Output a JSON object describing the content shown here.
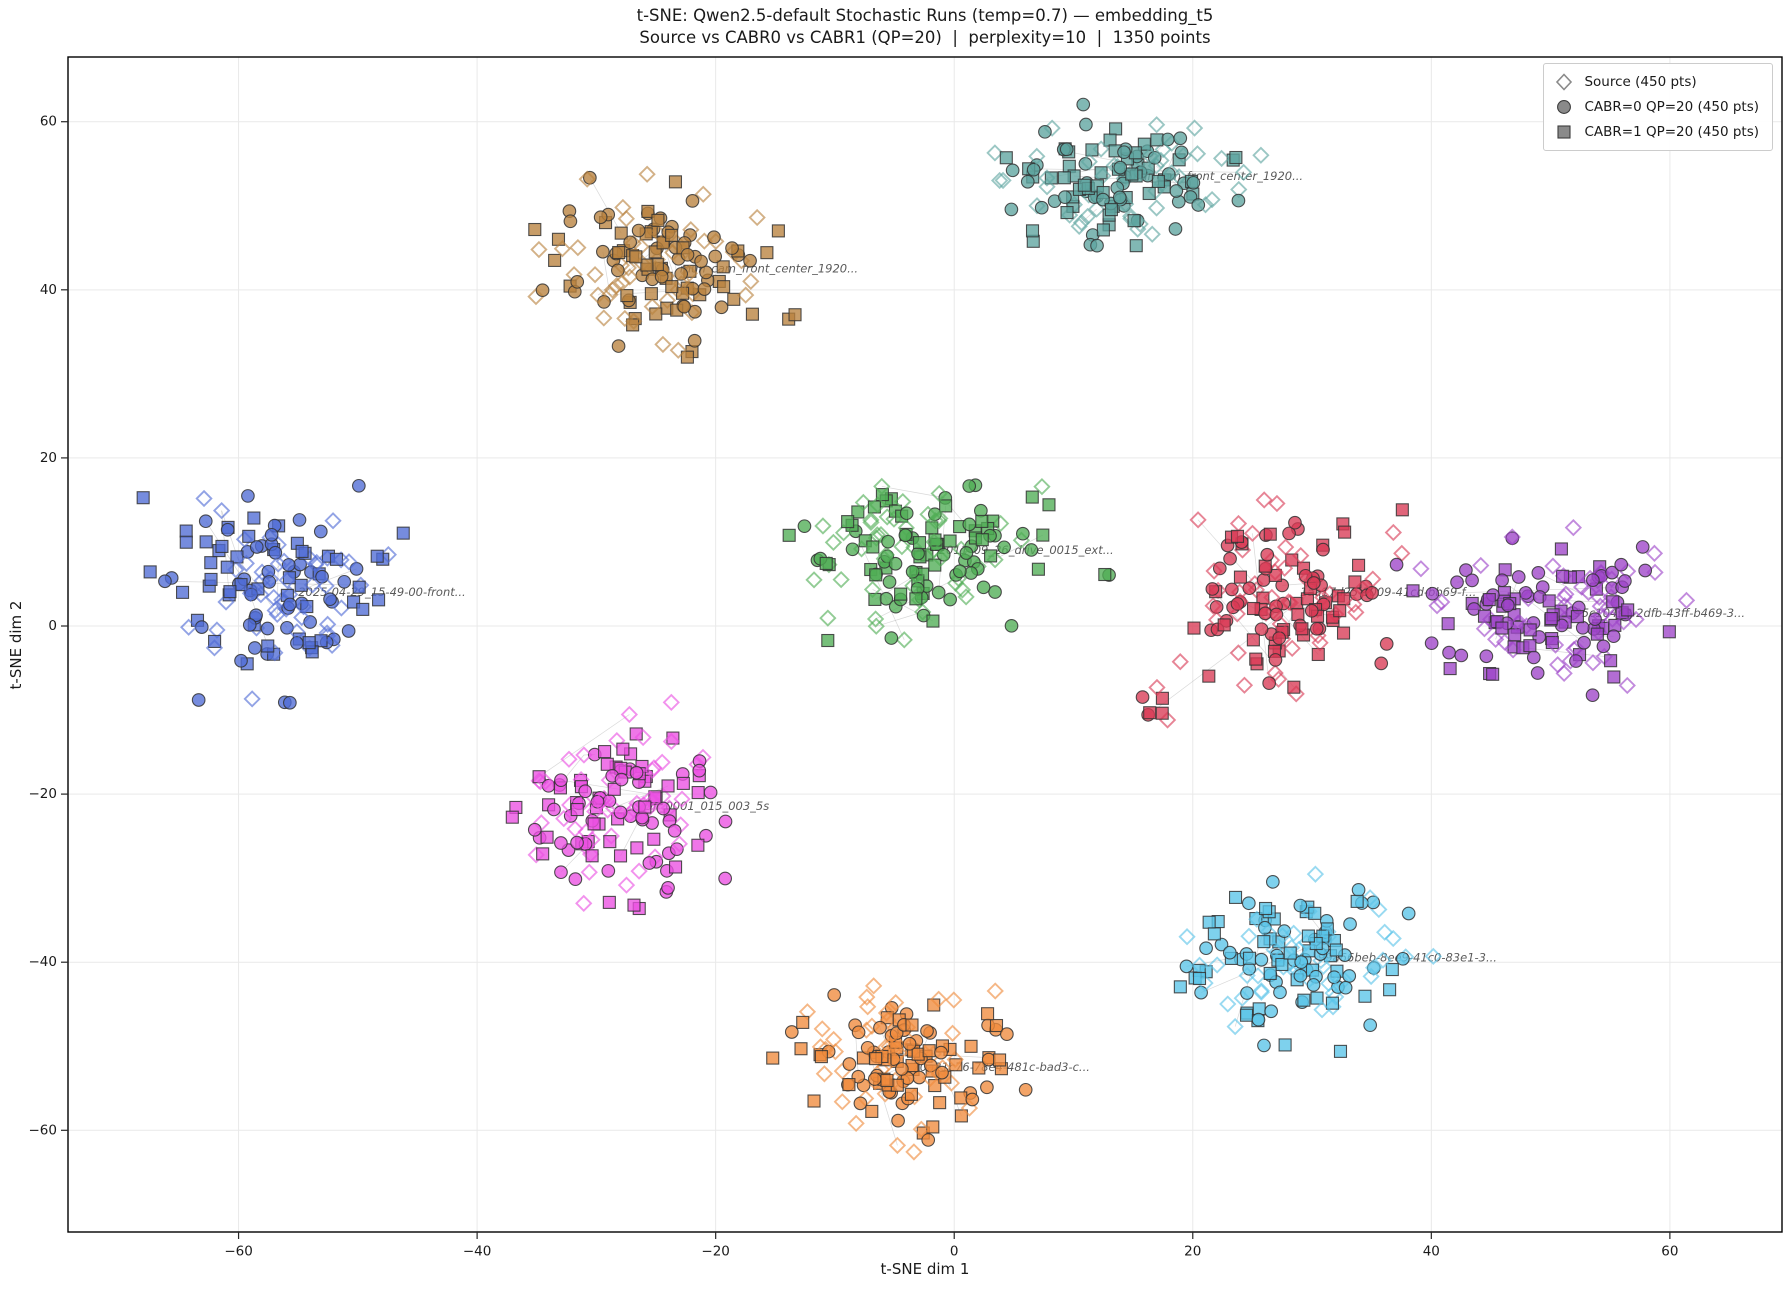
{
  "figure": {
    "title": "t-SNE: Qwen2.5-default Stochastic Runs (temp=0.7) — embedding_t5",
    "subtitle": "Source vs CABR0 vs CABR1 (QP=20)  |  perplexity=10  |  1350 points"
  },
  "chart_data": {
    "type": "scatter",
    "title": "t-SNE: Qwen2.5-default Stochastic Runs (temp=0.7) — embedding_t5",
    "subtitle": "Source vs CABR0 vs CABR1 (QP=20)  |  perplexity=10  |  1350 points",
    "xlabel": "t-SNE dim 1",
    "ylabel": "t-SNE dim 2",
    "xlim": [
      -74.3,
      69.4
    ],
    "ylim": [
      -72.1,
      67.7
    ],
    "xticks": [
      -60,
      -40,
      -20,
      0,
      20,
      40,
      60
    ],
    "yticks": [
      -60,
      -40,
      -20,
      0,
      20,
      40,
      60
    ],
    "grid": true,
    "total_points": 1350,
    "points_per_series": 450,
    "series_per_cluster": 50,
    "legend": {
      "position": "upper right",
      "entries": [
        {
          "label": "Source (450 pts)",
          "marker": "diamond",
          "filled": false
        },
        {
          "label": "CABR=0 QP=20 (450 pts)",
          "marker": "circle",
          "filled": true
        },
        {
          "label": "CABR=1 QP=20 (450 pts)",
          "marker": "square",
          "filled": true
        }
      ]
    },
    "clusters": [
      {
        "label": "2025-04-29_15-49-00-front...",
        "color": "#4f6bd5",
        "center": [
          -56.5,
          4.0
        ],
        "sigma": [
          4.8,
          5.2
        ]
      },
      {
        "label": "mun_cam_front_center_1920...",
        "color": "#b8813d",
        "center": [
          -24.5,
          42.5
        ],
        "sigma": [
          4.3,
          4.6
        ]
      },
      {
        "label": "gal_cam_front_center_1920...",
        "color": "#5da49f",
        "center": [
          13.5,
          53.5
        ],
        "sigma": [
          5.0,
          3.6
        ]
      },
      {
        "label": "2011_09_26_drive_0015_ext...",
        "color": "#4fad54",
        "center": [
          -2.8,
          9.0
        ],
        "sigma": [
          4.3,
          4.2
        ],
        "outliers": {
          "center": [
            14.5,
            6.2
          ],
          "sigma": [
            0.9,
            0.6
          ],
          "n": 2
        }
      },
      {
        "label": "1aa17d25-3009-41cd-bb69-f...",
        "color": "#d83a55",
        "center": [
          27.5,
          4.0
        ],
        "sigma": [
          4.6,
          5.0
        ],
        "outliers": {
          "center": [
            16.0,
            -9.5
          ],
          "sigma": [
            1.6,
            1.2
          ],
          "n": 7
        }
      },
      {
        "label": "95c10498-2dfb-43ff-b469-3...",
        "color": "#9d44c8",
        "center": [
          50.5,
          1.5
        ],
        "sigma": [
          5.2,
          4.0
        ]
      },
      {
        "label": "DJI_0001_015_003_5s",
        "color": "#ea4fe2",
        "center": [
          -27.5,
          -21.5
        ],
        "sigma": [
          3.8,
          5.0
        ]
      },
      {
        "label": "70a21c76-78e4-481c-bad3-c...",
        "color": "#ef8a3c",
        "center": [
          -5.0,
          -52.5
        ],
        "sigma": [
          4.4,
          4.4
        ]
      },
      {
        "label": "99a66beb-8ee9-41c0-83e1-3...",
        "color": "#5ac4e8",
        "center": [
          29.0,
          -39.5
        ],
        "sigma": [
          4.4,
          4.4
        ]
      }
    ],
    "label_style": {
      "dx": 1.5,
      "color": "#3d3d3d"
    },
    "style": {
      "grid_color": "#e9e9e9",
      "spine_color": "#000000",
      "tick_color": "#262626",
      "marker_edge_color": "#333333",
      "legend_marker_color": "#8a8a8a",
      "connector_color": "#999999"
    },
    "seed": 42
  }
}
